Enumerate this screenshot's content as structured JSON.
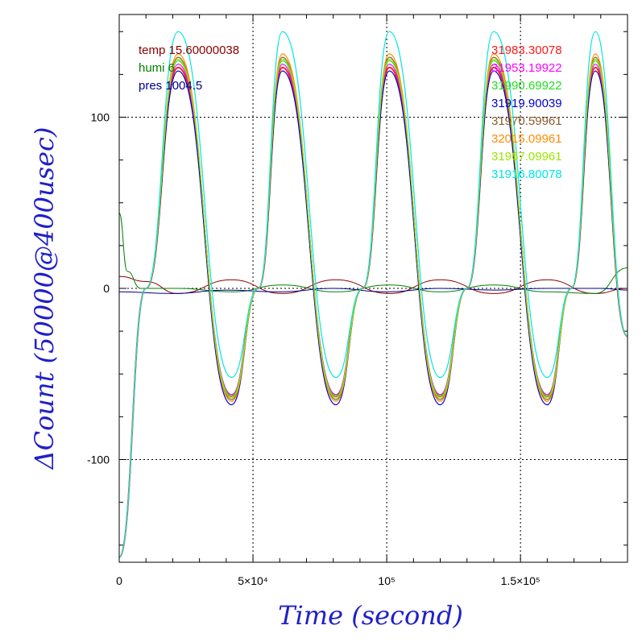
{
  "chart_data": {
    "type": "line",
    "xlabel": "Time (second)",
    "ylabel": "ΔCount (50000@400usec)",
    "xlim": [
      0,
      190000
    ],
    "ylim": [
      -160,
      160
    ],
    "grid": true,
    "x_ticks": [
      {
        "value": 0,
        "label": "0"
      },
      {
        "value": 50000,
        "label": "5×10⁴"
      },
      {
        "value": 100000,
        "label": "10⁵"
      },
      {
        "value": 150000,
        "label": "1.5×10⁵"
      }
    ],
    "y_ticks": [
      {
        "value": 100,
        "label": "100"
      },
      {
        "value": 0,
        "label": "0"
      },
      {
        "value": -100,
        "label": "-100"
      }
    ],
    "env_legend": [
      {
        "text": "temp 15.60000038",
        "color": "#8b0000"
      },
      {
        "text": "humi 6",
        "color": "#008000"
      },
      {
        "text": "pres 1004.5",
        "color": "#00008b"
      }
    ],
    "series": [
      {
        "name": "31983.30078",
        "color": "#ff1a1a",
        "peak": 129,
        "trough": -63
      },
      {
        "name": "31953.19922",
        "color": "#ff00ff",
        "peak": 131,
        "trough": -62
      },
      {
        "name": "31990.69922",
        "color": "#22dd22",
        "peak": 133,
        "trough": -63
      },
      {
        "name": "31919.90039",
        "color": "#0000cc",
        "peak": 127,
        "trough": -68
      },
      {
        "name": "31970.59961",
        "color": "#8b5a2b",
        "peak": 135,
        "trough": -65
      },
      {
        "name": "32015.09961",
        "color": "#ff8c00",
        "peak": 137,
        "trough": -66
      },
      {
        "name": "31967.09961",
        "color": "#99e600",
        "peak": 134,
        "trough": -64
      },
      {
        "name": "31916.80078",
        "color": "#00e5e5",
        "peak": 150,
        "trough": -52
      }
    ],
    "oscillation": {
      "peaks_x": [
        22000,
        61000,
        101000,
        140000,
        178000
      ],
      "troughs_x": [
        42000,
        81000,
        120000,
        160000
      ],
      "zero_crossings_x": [
        10000,
        52000,
        91000,
        130000,
        169000
      ],
      "start": {
        "x": 0,
        "y": -157
      },
      "end": {
        "x": 190000,
        "y": -28
      }
    },
    "env_curves": [
      {
        "name": "temp",
        "color": "#8b0000",
        "points": [
          [
            0,
            7
          ],
          [
            10000,
            4
          ],
          [
            22000,
            -3
          ],
          [
            42000,
            5
          ],
          [
            61000,
            -3
          ],
          [
            81000,
            5
          ],
          [
            101000,
            -3
          ],
          [
            120000,
            5
          ],
          [
            140000,
            -3
          ],
          [
            160000,
            5
          ],
          [
            178000,
            -3
          ],
          [
            190000,
            0
          ]
        ]
      },
      {
        "name": "humi",
        "color": "#008000",
        "points": [
          [
            0,
            44
          ],
          [
            3000,
            10
          ],
          [
            8000,
            0
          ],
          [
            22000,
            0
          ],
          [
            42000,
            -2
          ],
          [
            61000,
            2
          ],
          [
            81000,
            -2
          ],
          [
            101000,
            2
          ],
          [
            120000,
            -2
          ],
          [
            140000,
            2
          ],
          [
            160000,
            -2
          ],
          [
            178000,
            -3
          ],
          [
            190000,
            12
          ]
        ]
      },
      {
        "name": "pres",
        "color": "#00008b",
        "points": [
          [
            0,
            -2
          ],
          [
            20000,
            -3
          ],
          [
            40000,
            -1
          ],
          [
            60000,
            -2
          ],
          [
            80000,
            0
          ],
          [
            100000,
            -2
          ],
          [
            120000,
            0
          ],
          [
            140000,
            -1
          ],
          [
            160000,
            0
          ],
          [
            180000,
            0
          ],
          [
            190000,
            -1
          ]
        ]
      }
    ]
  }
}
